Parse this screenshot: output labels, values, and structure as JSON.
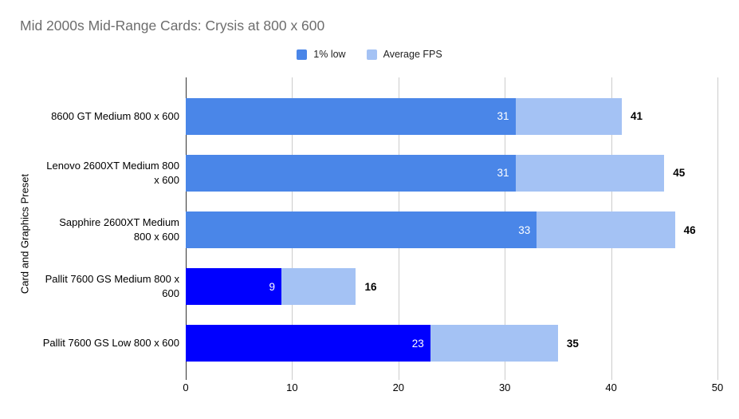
{
  "legend": [
    {
      "label": "1% low",
      "color": "#4a86e8"
    },
    {
      "label": "Average FPS",
      "color": "#a4c2f4"
    }
  ],
  "colors": {
    "grid": "#cccccc",
    "axis": "#333333",
    "title_text": "#6d6d6d",
    "bar_label_inside": "#ffffff",
    "bar_label_outside": "#000000",
    "background": "#ffffff"
  },
  "chart_data": {
    "type": "bar",
    "orientation": "horizontal",
    "stacked": true,
    "title": "Mid 2000s Mid-Range Cards: Crysis at 800 x 600",
    "xlabel": "",
    "ylabel": "Card and Graphics Preset",
    "xlim": [
      0,
      50
    ],
    "xticks": [
      0,
      10,
      20,
      30,
      40,
      50
    ],
    "grid": "vertical",
    "legend_position": "top-center",
    "categories": [
      "8600 GT Medium 800 x 600",
      "Lenovo 2600XT Medium 800 x 600",
      "Sapphire 2600XT Medium 800 x 600",
      "Pallit 7600 GS Medium 800 x 600",
      "Pallit 7600 GS Low 800 x 600"
    ],
    "series": [
      {
        "name": "1% low",
        "values": [
          31,
          31,
          33,
          9,
          23
        ],
        "colors": [
          "#4a86e8",
          "#4a86e8",
          "#4a86e8",
          "#0000ff",
          "#0000ff"
        ],
        "label_placement": "inside-end"
      },
      {
        "name": "Average FPS",
        "values": [
          41,
          45,
          46,
          16,
          35
        ],
        "color": "#a4c2f4",
        "segment_drawn_from": "1% low value to Average FPS value",
        "label_placement": "outside-end"
      }
    ]
  }
}
